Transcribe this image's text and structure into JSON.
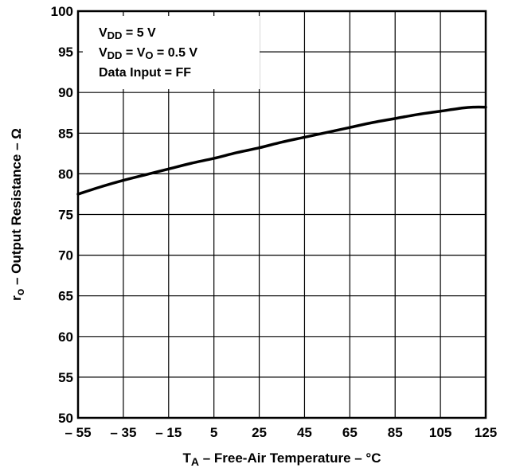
{
  "chart_data": {
    "type": "line",
    "title": "",
    "xlabel": {
      "main": "T",
      "sub": "A",
      "rest": " – Free-Air Temperature – °C"
    },
    "ylabel": {
      "main": "r",
      "sub": "o",
      "rest": " – Output Resistance – Ω"
    },
    "xlim": [
      -55,
      125
    ],
    "ylim": [
      50,
      100
    ],
    "x_ticks": [
      -55,
      -35,
      -15,
      5,
      25,
      45,
      65,
      85,
      105,
      125
    ],
    "x_tick_labels": [
      "– 55",
      "– 35",
      "– 15",
      "5",
      "25",
      "45",
      "65",
      "85",
      "105",
      "125"
    ],
    "y_ticks": [
      50,
      55,
      60,
      65,
      70,
      75,
      80,
      85,
      90,
      95,
      100
    ],
    "y_tick_labels": [
      "50",
      "55",
      "60",
      "65",
      "70",
      "75",
      "80",
      "85",
      "90",
      "95",
      "100"
    ],
    "grid": true,
    "annotations": [
      {
        "main": "V",
        "sub": "DD",
        "rest": " = 5 V"
      },
      {
        "main": "V",
        "sub": "DD",
        "mid": " = V",
        "sub2": "O",
        "rest": " = 0.5 V"
      },
      {
        "main": "Data Input = FF"
      }
    ],
    "series": [
      {
        "x": [
          -55,
          -45,
          -35,
          -25,
          -15,
          -5,
          5,
          15,
          25,
          35,
          45,
          55,
          65,
          75,
          85,
          95,
          105,
          115,
          120,
          125
        ],
        "y": [
          77.5,
          78.4,
          79.2,
          79.9,
          80.6,
          81.3,
          81.9,
          82.6,
          83.2,
          83.9,
          84.5,
          85.1,
          85.7,
          86.3,
          86.8,
          87.3,
          87.7,
          88.1,
          88.2,
          88.2
        ]
      }
    ],
    "colors": {
      "line": "#000000",
      "grid": "#000000",
      "background": "#ffffff"
    }
  }
}
